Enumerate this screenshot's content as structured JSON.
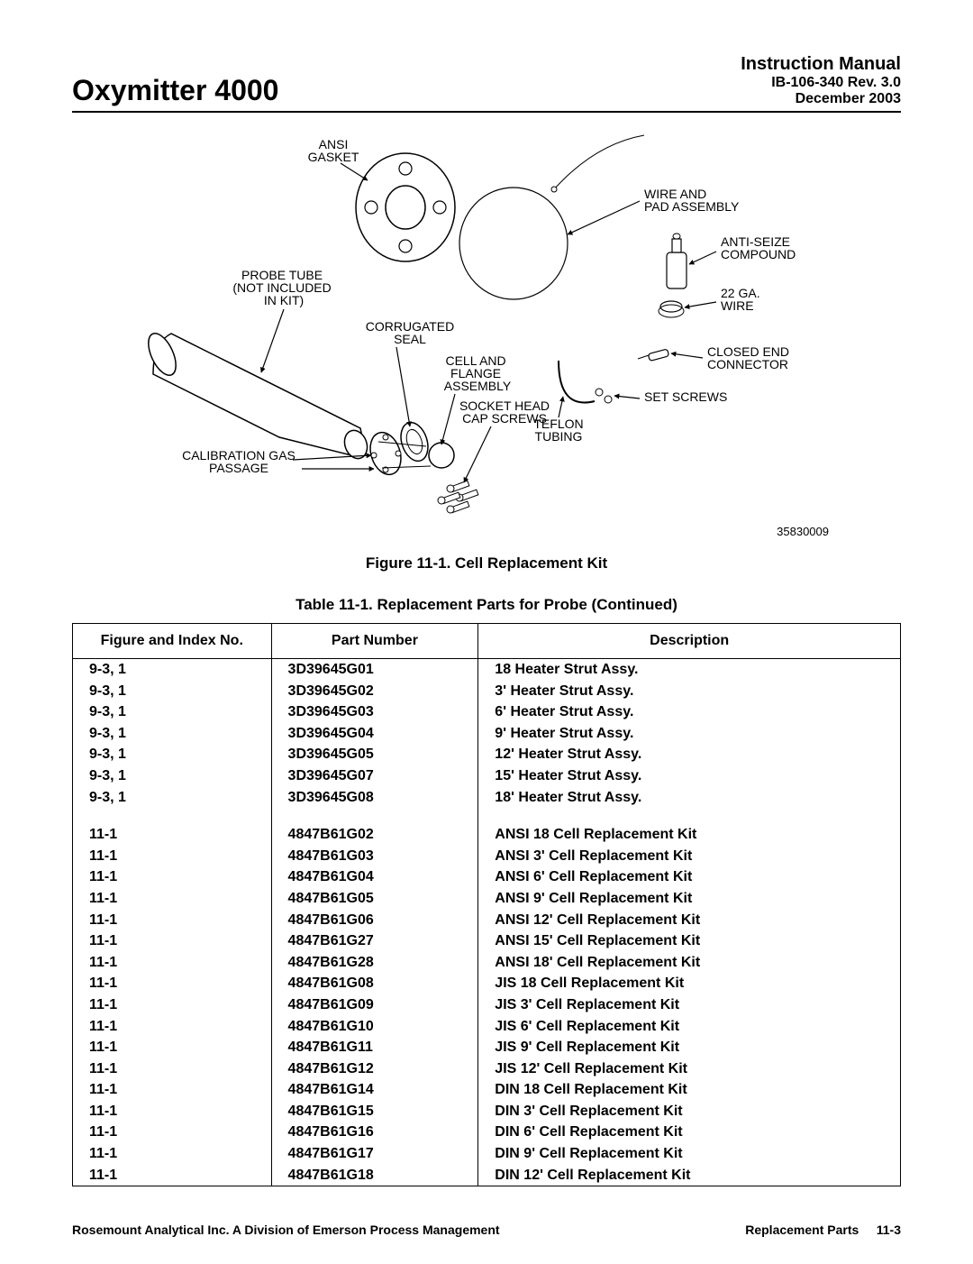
{
  "header": {
    "product": "Oxymitter 4000",
    "manual_title": "Instruction Manual",
    "doc_id": "IB-106-340  Rev. 3.0",
    "doc_date": "December 2003"
  },
  "diagram": {
    "id": "35830009",
    "labels": {
      "ansi_gasket": "ANSI\nGASKET",
      "probe_tube": "PROBE TUBE\n(NOT INCLUDED\nIN KIT)",
      "corrugated_seal": "CORRUGATED\nSEAL",
      "cell_flange": "CELL AND\nFLANGE\nASSEMBLY",
      "socket_head": "SOCKET HEAD\nCAP SCREWS",
      "calibration_gas": "CALIBRATION GAS\nPASSAGE",
      "wire_pad": "WIRE AND\nPAD ASSEMBLY",
      "anti_seize": "ANTI-SEIZE\nCOMPOUND",
      "wire_22ga": "22 GA.\nWIRE",
      "closed_end": "CLOSED END\nCONNECTOR",
      "set_screws": "SET SCREWS",
      "teflon_tubing": "TEFLON\nTUBING"
    }
  },
  "figure_caption": "Figure 11-1.  Cell Replacement Kit",
  "table_caption": "Table 11-1.  Replacement Parts for Probe (Continued)",
  "table": {
    "columns": [
      "Figure and Index No.",
      "Part Number",
      "Description"
    ],
    "rows_group1": [
      [
        "9-3, 1",
        "3D39645G01",
        "18 Heater Strut Assy."
      ],
      [
        "9-3, 1",
        "3D39645G02",
        "3' Heater Strut Assy."
      ],
      [
        "9-3, 1",
        "3D39645G03",
        "6' Heater Strut Assy."
      ],
      [
        "9-3, 1",
        "3D39645G04",
        "9' Heater Strut Assy."
      ],
      [
        "9-3, 1",
        "3D39645G05",
        "12' Heater Strut Assy."
      ],
      [
        "9-3, 1",
        "3D39645G07",
        "15' Heater Strut Assy."
      ],
      [
        "9-3, 1",
        "3D39645G08",
        "18' Heater Strut Assy."
      ]
    ],
    "rows_group2": [
      [
        "11-1",
        "4847B61G02",
        "ANSI 18 Cell Replacement Kit"
      ],
      [
        "11-1",
        "4847B61G03",
        "ANSI 3' Cell Replacement Kit"
      ],
      [
        "11-1",
        "4847B61G04",
        "ANSI 6' Cell Replacement Kit"
      ],
      [
        "11-1",
        "4847B61G05",
        "ANSI 9' Cell Replacement Kit"
      ],
      [
        "11-1",
        "4847B61G06",
        "ANSI 12' Cell Replacement Kit"
      ],
      [
        "11-1",
        "4847B61G27",
        "ANSI 15' Cell Replacement Kit"
      ],
      [
        "11-1",
        "4847B61G28",
        "ANSI 18' Cell Replacement Kit"
      ],
      [
        "11-1",
        "4847B61G08",
        "JIS 18 Cell Replacement Kit"
      ],
      [
        "11-1",
        "4847B61G09",
        "JIS 3' Cell Replacement Kit"
      ],
      [
        "11-1",
        "4847B61G10",
        "JIS 6' Cell Replacement Kit"
      ],
      [
        "11-1",
        "4847B61G11",
        "JIS 9' Cell Replacement Kit"
      ],
      [
        "11-1",
        "4847B61G12",
        "JIS 12' Cell Replacement Kit"
      ],
      [
        "11-1",
        "4847B61G14",
        "DIN 18 Cell Replacement Kit"
      ],
      [
        "11-1",
        "4847B61G15",
        "DIN 3' Cell Replacement Kit"
      ],
      [
        "11-1",
        "4847B61G16",
        "DIN 6' Cell Replacement Kit"
      ],
      [
        "11-1",
        "4847B61G17",
        "DIN 9' Cell Replacement Kit"
      ],
      [
        "11-1",
        "4847B61G18",
        "DIN 12' Cell Replacement Kit"
      ]
    ]
  },
  "footer": {
    "left": "Rosemount Analytical Inc.    A Division of Emerson Process Management",
    "right_label": "Replacement Parts",
    "right_page": "11-3"
  }
}
